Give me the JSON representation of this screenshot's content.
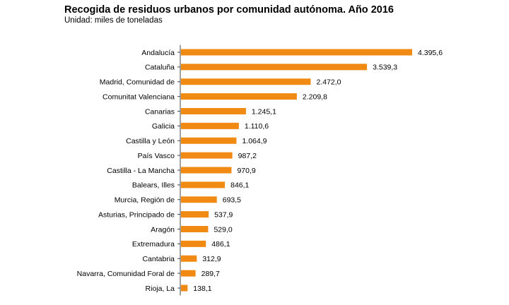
{
  "chart_data": {
    "type": "bar",
    "orientation": "horizontal",
    "title": "Recogida de residuos urbanos por comunidad autónoma. Año 2016",
    "subtitle": "Unidad: miles de toneladas",
    "categories": [
      "Andalucía",
      "Cataluña",
      "Madrid, Comunidad de",
      "Comunitat Valenciana",
      "Canarias",
      "Galicia",
      "Castilla y León",
      "País Vasco",
      "Castilla - La Mancha",
      "Balears, Illes",
      "Murcia, Región de",
      "Asturias, Principado de",
      "Aragón",
      "Extremadura",
      "Cantabria",
      "Navarra, Comunidad Foral de",
      "Rioja, La"
    ],
    "values": [
      4395.6,
      3539.3,
      2472.0,
      2209.8,
      1245.1,
      1110.6,
      1064.9,
      987.2,
      970.9,
      846.1,
      693.5,
      537.9,
      529.0,
      486.1,
      312.9,
      289.7,
      138.1
    ],
    "value_labels": [
      "4.395,6",
      "3.539,3",
      "2.472,0",
      "2.209,8",
      "1.245,1",
      "1.110,6",
      "1.064,9",
      "987,2",
      "970,9",
      "846,1",
      "693,5",
      "537,9",
      "529,0",
      "486,1",
      "312,9",
      "289,7",
      "138,1"
    ],
    "bar_color": "#f08a12",
    "axis_color": "#444444",
    "grid": false
  }
}
